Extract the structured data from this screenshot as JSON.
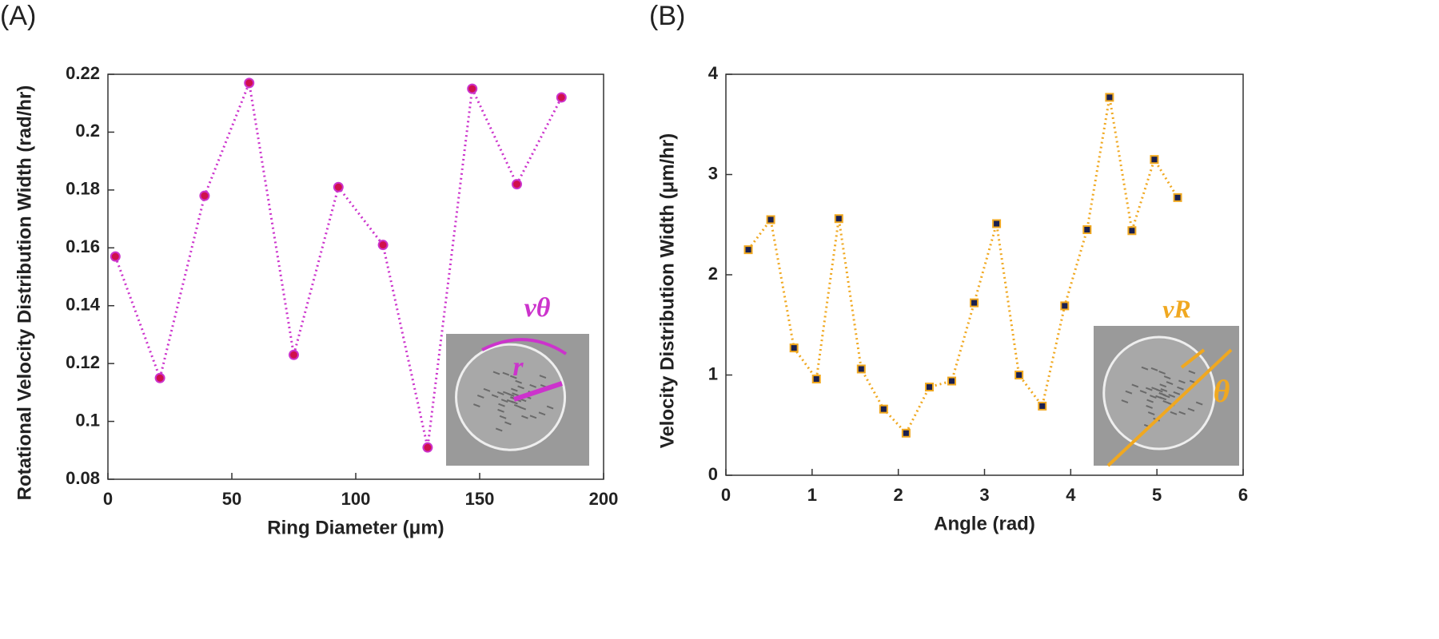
{
  "chart_data": [
    {
      "type": "line",
      "panel_label": "(A)",
      "xlabel": "Ring Diameter (μm)",
      "ylabel": "Rotational Velocity Distribution Width (rad/hr)",
      "x": [
        3,
        21,
        39,
        57,
        75,
        93,
        111,
        129,
        147,
        165,
        183
      ],
      "series": [
        {
          "color": "#cc33cc",
          "marker_color": "#d0104c",
          "marker": "circle",
          "values": [
            0.157,
            0.115,
            0.178,
            0.217,
            0.123,
            0.181,
            0.161,
            0.091,
            0.215,
            0.182,
            0.212
          ]
        }
      ],
      "xlim": [
        0,
        200
      ],
      "ylim": [
        0.08,
        0.22
      ],
      "xticks": [
        0,
        50,
        100,
        150,
        200
      ],
      "yticks": [
        0.08,
        0.1,
        0.12,
        0.14,
        0.16,
        0.18,
        0.2,
        0.22
      ],
      "annotations": [
        "vθ",
        "r"
      ]
    },
    {
      "type": "line",
      "panel_label": "(B)",
      "xlabel": "Angle (rad)",
      "ylabel": "Velocity Distribution Width (μm/hr)",
      "x": [
        0.26,
        0.52,
        0.79,
        1.05,
        1.31,
        1.57,
        1.83,
        2.09,
        2.36,
        2.62,
        2.88,
        3.14,
        3.4,
        3.67,
        3.93,
        4.19,
        4.45,
        4.71,
        4.97,
        5.24
      ],
      "series": [
        {
          "color": "#f0a820",
          "marker_color": "#1a2050",
          "marker": "square",
          "values": [
            2.25,
            2.55,
            1.27,
            0.96,
            2.56,
            1.06,
            0.66,
            0.42,
            0.88,
            0.94,
            1.72,
            2.51,
            1.0,
            0.69,
            1.69,
            2.45,
            3.77,
            2.44,
            3.15,
            2.77
          ]
        }
      ],
      "xlim": [
        0,
        6
      ],
      "ylim": [
        0,
        4
      ],
      "xticks": [
        0,
        1,
        2,
        3,
        4,
        5,
        6
      ],
      "yticks": [
        0,
        1,
        2,
        3,
        4
      ],
      "annotations": [
        "vR",
        "θ"
      ]
    }
  ]
}
